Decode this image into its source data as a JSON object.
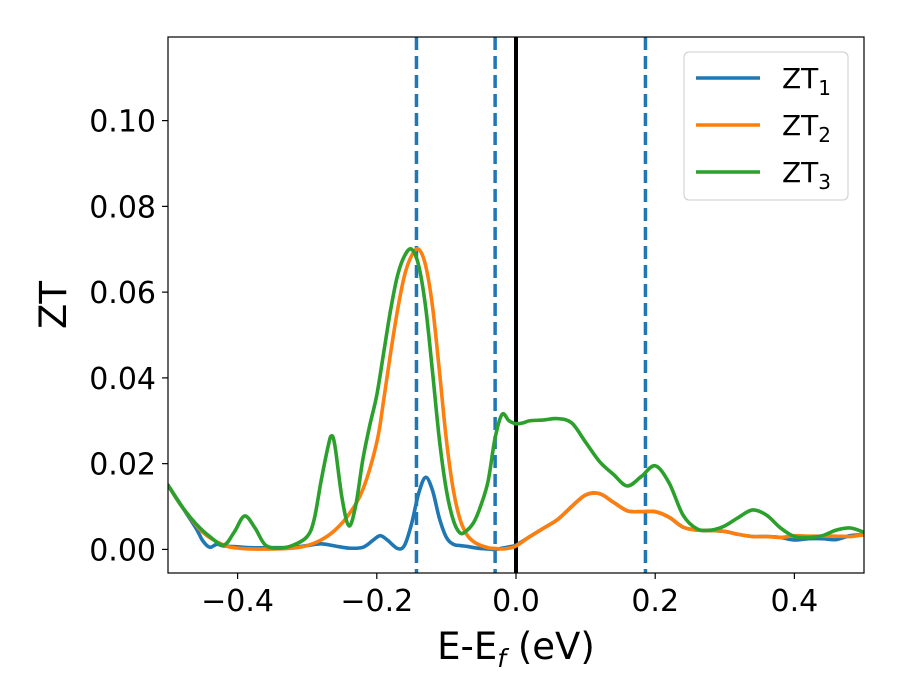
{
  "chart_data": {
    "type": "line",
    "title": "",
    "xlabel": "E-E",
    "xlabel_sub": "f",
    "xlabel_unit": " (eV)",
    "ylabel": "ZT",
    "xlim": [
      -0.5,
      0.5
    ],
    "ylim": [
      -0.0055,
      0.1195
    ],
    "xticks": [
      -0.4,
      -0.2,
      0.0,
      0.2,
      0.4
    ],
    "xtick_labels": [
      "−0.4",
      "−0.2",
      "0.0",
      "0.2",
      "0.4"
    ],
    "yticks": [
      0.0,
      0.02,
      0.04,
      0.06,
      0.08,
      0.1
    ],
    "ytick_labels": [
      "0.00",
      "0.02",
      "0.04",
      "0.06",
      "0.08",
      "0.10"
    ],
    "grid": false,
    "legend_position": "top-right",
    "vlines": [
      {
        "x": -0.143,
        "style": "dashed",
        "color": "#1f77b4"
      },
      {
        "x": -0.03,
        "style": "dashed",
        "color": "#1f77b4"
      },
      {
        "x": 0.0,
        "style": "solid",
        "color": "#000000"
      },
      {
        "x": 0.186,
        "style": "dashed",
        "color": "#1f77b4"
      }
    ],
    "series": [
      {
        "name": "ZT",
        "name_sub": "1",
        "color": "#1f77b4",
        "x": [
          -0.5,
          -0.48,
          -0.46,
          -0.45,
          -0.44,
          -0.43,
          -0.42,
          -0.4,
          -0.38,
          -0.35,
          -0.32,
          -0.3,
          -0.28,
          -0.26,
          -0.24,
          -0.22,
          -0.205,
          -0.195,
          -0.185,
          -0.17,
          -0.16,
          -0.15,
          -0.14,
          -0.13,
          -0.12,
          -0.11,
          -0.1,
          -0.09,
          -0.08,
          -0.07,
          -0.06,
          -0.05,
          -0.04,
          -0.03,
          -0.02,
          -0.01,
          0.0,
          0.02,
          0.04,
          0.06,
          0.08,
          0.1,
          0.12,
          0.14,
          0.16,
          0.18,
          0.2,
          0.22,
          0.24,
          0.26,
          0.28,
          0.3,
          0.32,
          0.34,
          0.36,
          0.38,
          0.4,
          0.42,
          0.44,
          0.46,
          0.48,
          0.5
        ],
        "y": [
          0.015,
          0.01,
          0.005,
          0.002,
          0.0005,
          0.0012,
          0.0008,
          0.0006,
          0.0004,
          0.0004,
          0.0005,
          0.0009,
          0.0013,
          0.0008,
          0.0003,
          0.0005,
          0.0022,
          0.0032,
          0.0022,
          0.0002,
          0.001,
          0.006,
          0.013,
          0.0168,
          0.0138,
          0.0072,
          0.0028,
          0.0012,
          0.0009,
          0.0007,
          0.0004,
          0.0002,
          0.0001,
          0.0,
          0.0003,
          0.0006,
          0.001,
          0.003,
          0.005,
          0.007,
          0.01,
          0.0127,
          0.013,
          0.011,
          0.009,
          0.0088,
          0.0088,
          0.0075,
          0.0052,
          0.0045,
          0.0044,
          0.0042,
          0.0035,
          0.003,
          0.003,
          0.0028,
          0.0022,
          0.0025,
          0.0025,
          0.0023,
          0.0032,
          0.0034
        ]
      },
      {
        "name": "ZT",
        "name_sub": "2",
        "color": "#ff7f0e",
        "x": [
          -0.5,
          -0.48,
          -0.45,
          -0.42,
          -0.4,
          -0.38,
          -0.35,
          -0.32,
          -0.3,
          -0.28,
          -0.26,
          -0.24,
          -0.22,
          -0.2,
          -0.19,
          -0.18,
          -0.17,
          -0.16,
          -0.15,
          -0.14,
          -0.13,
          -0.12,
          -0.11,
          -0.1,
          -0.09,
          -0.08,
          -0.07,
          -0.06,
          -0.05,
          -0.04,
          -0.03,
          -0.02,
          -0.01,
          0.0,
          0.02,
          0.04,
          0.06,
          0.08,
          0.1,
          0.12,
          0.14,
          0.16,
          0.18,
          0.2,
          0.22,
          0.24,
          0.26,
          0.28,
          0.3,
          0.32,
          0.34,
          0.36,
          0.38,
          0.4,
          0.42,
          0.44,
          0.46,
          0.48,
          0.5
        ],
        "y": [
          0.015,
          0.01,
          0.004,
          0.001,
          0.0003,
          0.0001,
          0.0001,
          0.0003,
          0.0009,
          0.0022,
          0.0045,
          0.0082,
          0.014,
          0.025,
          0.035,
          0.046,
          0.056,
          0.064,
          0.0685,
          0.07,
          0.0663,
          0.0567,
          0.0415,
          0.0255,
          0.0138,
          0.0068,
          0.0033,
          0.0017,
          0.0009,
          0.0004,
          0.0002,
          0.0001,
          0.0003,
          0.0008,
          0.003,
          0.005,
          0.007,
          0.01,
          0.0127,
          0.013,
          0.011,
          0.009,
          0.0088,
          0.0088,
          0.0075,
          0.0052,
          0.0045,
          0.0044,
          0.0042,
          0.0035,
          0.003,
          0.003,
          0.0028,
          0.0032,
          0.0031,
          0.0031,
          0.0031,
          0.003,
          0.0034
        ]
      },
      {
        "name": "ZT",
        "name_sub": "3",
        "color": "#2ca02c",
        "x": [
          -0.5,
          -0.48,
          -0.46,
          -0.44,
          -0.42,
          -0.405,
          -0.39,
          -0.375,
          -0.36,
          -0.34,
          -0.32,
          -0.3,
          -0.29,
          -0.28,
          -0.27,
          -0.265,
          -0.26,
          -0.25,
          -0.24,
          -0.23,
          -0.22,
          -0.21,
          -0.2,
          -0.19,
          -0.18,
          -0.17,
          -0.16,
          -0.15,
          -0.14,
          -0.13,
          -0.12,
          -0.11,
          -0.1,
          -0.09,
          -0.08,
          -0.07,
          -0.06,
          -0.05,
          -0.04,
          -0.03,
          -0.02,
          -0.01,
          0.0,
          0.01,
          0.02,
          0.04,
          0.06,
          0.08,
          0.1,
          0.12,
          0.14,
          0.16,
          0.18,
          0.2,
          0.22,
          0.24,
          0.26,
          0.28,
          0.3,
          0.32,
          0.34,
          0.36,
          0.38,
          0.4,
          0.42,
          0.44,
          0.46,
          0.48,
          0.5
        ],
        "y": [
          0.015,
          0.01,
          0.006,
          0.003,
          0.001,
          0.004,
          0.0078,
          0.005,
          0.001,
          0.0003,
          0.001,
          0.003,
          0.007,
          0.016,
          0.024,
          0.0265,
          0.024,
          0.012,
          0.0055,
          0.0105,
          0.021,
          0.029,
          0.036,
          0.046,
          0.056,
          0.064,
          0.0685,
          0.07,
          0.0663,
          0.0567,
          0.0415,
          0.0255,
          0.0138,
          0.0068,
          0.0038,
          0.0045,
          0.0065,
          0.0105,
          0.016,
          0.026,
          0.0315,
          0.03,
          0.0293,
          0.0295,
          0.03,
          0.0302,
          0.0305,
          0.0295,
          0.025,
          0.0205,
          0.0175,
          0.0148,
          0.017,
          0.0195,
          0.0155,
          0.008,
          0.0048,
          0.0045,
          0.0055,
          0.0075,
          0.0092,
          0.008,
          0.005,
          0.003,
          0.0028,
          0.0032,
          0.0045,
          0.005,
          0.004
        ]
      }
    ]
  }
}
